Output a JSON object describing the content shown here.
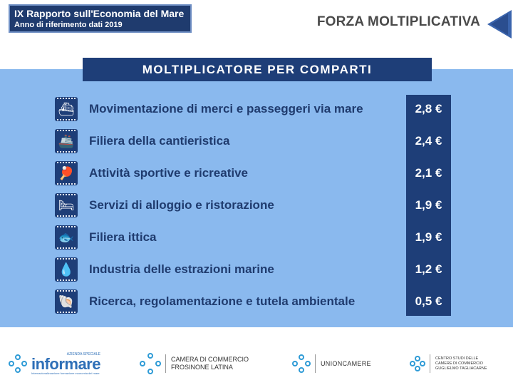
{
  "header": {
    "report_title": "IX Rapporto sull'Economia del Mare",
    "report_subtitle": "Anno di riferimento dati 2019",
    "page_title": "FORZA MOLTIPLICATIVA"
  },
  "panel": {
    "title": "MOLTIPLICATORE PER COMPARTI",
    "rows": [
      {
        "icon": "cargo-ship-icon",
        "label": "Movimentazione di merci e passeggeri via mare",
        "value": "2,8 €"
      },
      {
        "icon": "shipyard-icon",
        "label": "Filiera della cantieristica",
        "value": "2,4 €"
      },
      {
        "icon": "sport-recreation-icon",
        "label": "Attività sportive e ricreative",
        "value": "2,1 €"
      },
      {
        "icon": "bed-icon",
        "label": "Servizi di alloggio e ristorazione",
        "value": "1,9 €"
      },
      {
        "icon": "fish-icon",
        "label": "Filiera ittica",
        "value": "1,9 €"
      },
      {
        "icon": "oil-drop-icon",
        "label": "Industria delle estrazioni marine",
        "value": "1,2 €"
      },
      {
        "icon": "research-shell-icon",
        "label": "Ricerca, regolamentazione e tutela ambientale",
        "value": "0,5 €"
      }
    ]
  },
  "footer": {
    "informare_top": "AZIENDA SPECIALE",
    "informare_name": "informare",
    "informare_tag": "Internazionalizzazione formazione economia del mare",
    "camera_line1": "CAMERA DI COMMERCIO",
    "camera_line2": "FROSINONE LATINA",
    "unioncamere": "UNIONCAMERE",
    "tagliacarne_line1": "CENTRO STUDI DELLE",
    "tagliacarne_line2": "CAMERE DI COMMERCIO",
    "tagliacarne_line3": "GUGLIELMO TAGLIACARNE"
  },
  "colors": {
    "navy": "#1e3e78",
    "panel_blue": "#8ab9ee",
    "accent_blue": "#2e9bd6"
  }
}
